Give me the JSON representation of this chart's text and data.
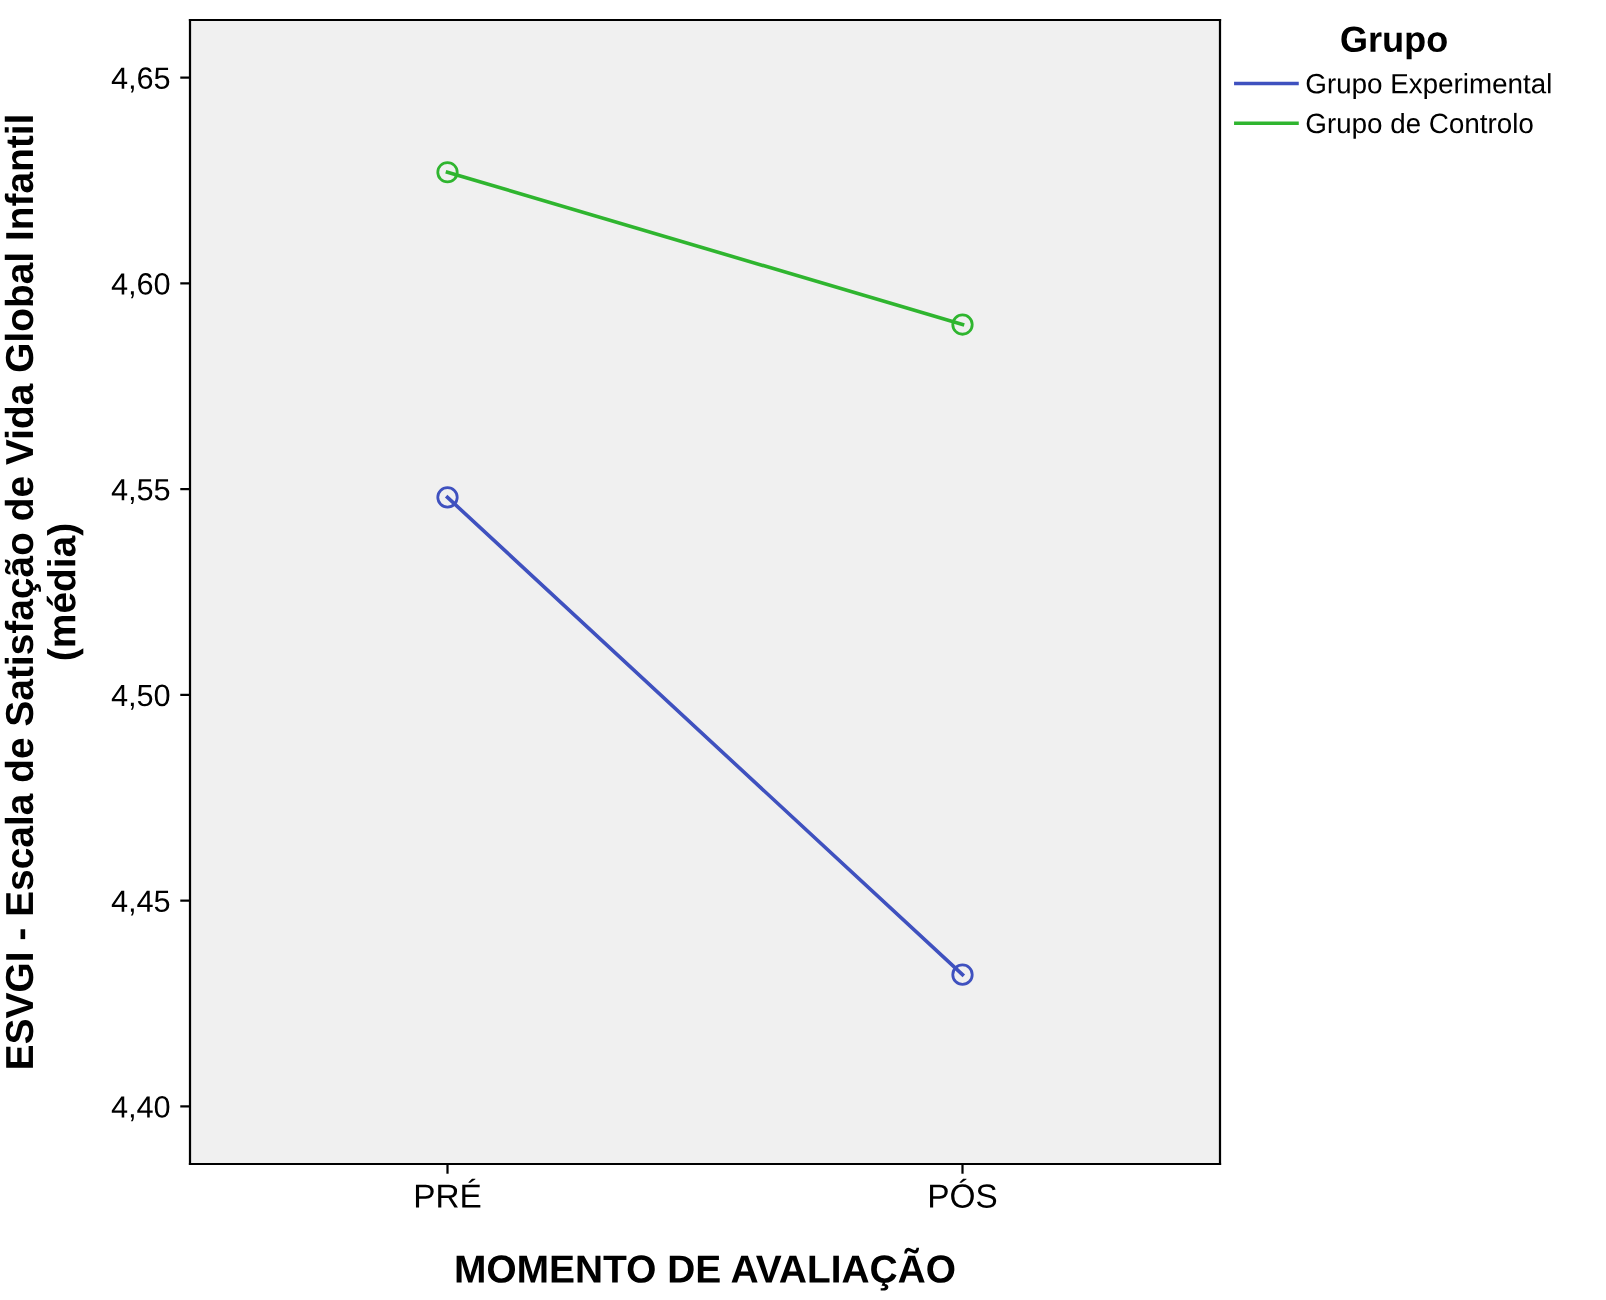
{
  "chart_data": {
    "type": "line",
    "categories": [
      "PRÉ",
      "PÓS"
    ],
    "xlabel": "MOMENTO DE AVALIAÇÃO",
    "ylabel": "ESVGI - Escala de Satisfação de Vida Global Infantil\n(média)",
    "legend_title": "Grupo",
    "series": [
      {
        "name": "Grupo Experimental",
        "color": "#3f51bf",
        "values": [
          4.548,
          4.432
        ]
      },
      {
        "name": "Grupo de Controlo",
        "color": "#2fb52f",
        "values": [
          4.627,
          4.59
        ]
      }
    ],
    "ylim": [
      4.386,
      4.664
    ],
    "yticks": [
      {
        "value": 4.4,
        "label": "4,40"
      },
      {
        "value": 4.45,
        "label": "4,45"
      },
      {
        "value": 4.5,
        "label": "4,50"
      },
      {
        "value": 4.55,
        "label": "4,55"
      },
      {
        "value": 4.6,
        "label": "4,60"
      },
      {
        "value": 4.65,
        "label": "4,65"
      }
    ],
    "marker": "circle",
    "line_style": "solid",
    "legend": "top right",
    "grid": false
  }
}
